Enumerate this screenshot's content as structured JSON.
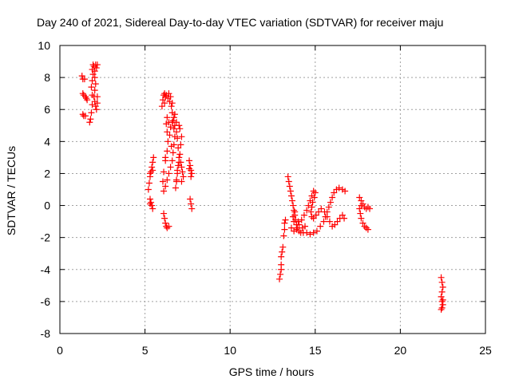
{
  "chart_data": {
    "type": "scatter",
    "title": "Day 240 of 2021, Sidereal Day-to-day VTEC variation (SDTVAR) for receiver maju",
    "xlabel": "GPS time / hours",
    "ylabel": "SDTVAR / TECUs",
    "xlim": [
      0,
      25
    ],
    "ylim": [
      -8,
      10
    ],
    "xticks": [
      0,
      5,
      10,
      15,
      20,
      25
    ],
    "yticks": [
      -8,
      -6,
      -4,
      -2,
      0,
      2,
      4,
      6,
      8,
      10
    ],
    "grid": true,
    "marker": "+",
    "color": "#ff0000",
    "series": [
      {
        "name": "SDTVAR",
        "points": [
          [
            1.3,
            8.1
          ],
          [
            1.35,
            7.9
          ],
          [
            1.45,
            7.9
          ],
          [
            1.35,
            7.0
          ],
          [
            1.4,
            6.9
          ],
          [
            1.5,
            6.8
          ],
          [
            1.55,
            6.7
          ],
          [
            1.6,
            6.6
          ],
          [
            1.35,
            5.7
          ],
          [
            1.4,
            5.6
          ],
          [
            1.5,
            5.6
          ],
          [
            1.75,
            5.2
          ],
          [
            1.8,
            5.4
          ],
          [
            1.85,
            5.8
          ],
          [
            1.9,
            6.3
          ],
          [
            1.9,
            6.9
          ],
          [
            1.85,
            7.4
          ],
          [
            1.9,
            7.8
          ],
          [
            1.95,
            8.2
          ],
          [
            1.9,
            8.5
          ],
          [
            1.95,
            8.8
          ],
          [
            2.0,
            8.7
          ],
          [
            2.05,
            8.4
          ],
          [
            2.05,
            8.0
          ],
          [
            2.1,
            7.6
          ],
          [
            2.05,
            7.2
          ],
          [
            2.0,
            6.8
          ],
          [
            2.05,
            6.5
          ],
          [
            2.1,
            6.2
          ],
          [
            2.15,
            6.0
          ],
          [
            2.2,
            6.4
          ],
          [
            2.2,
            6.8
          ],
          [
            2.1,
            8.8
          ],
          [
            2.15,
            8.6
          ],
          [
            2.2,
            8.8
          ],
          [
            5.2,
            1.0
          ],
          [
            5.25,
            1.4
          ],
          [
            5.3,
            1.8
          ],
          [
            5.35,
            2.1
          ],
          [
            5.4,
            2.4
          ],
          [
            5.45,
            2.7
          ],
          [
            5.5,
            3.0
          ],
          [
            5.45,
            2.2
          ],
          [
            5.3,
            2.0
          ],
          [
            5.3,
            0.4
          ],
          [
            5.35,
            0.2
          ],
          [
            5.4,
            0.0
          ],
          [
            5.45,
            -0.2
          ],
          [
            5.3,
            0.1
          ],
          [
            6.0,
            6.2
          ],
          [
            6.05,
            6.6
          ],
          [
            6.1,
            6.9
          ],
          [
            6.15,
            7.0
          ],
          [
            6.25,
            6.9
          ],
          [
            6.35,
            6.7
          ],
          [
            6.45,
            6.5
          ],
          [
            6.55,
            6.2
          ],
          [
            6.6,
            5.8
          ],
          [
            6.65,
            5.3
          ],
          [
            6.7,
            4.8
          ],
          [
            6.75,
            4.3
          ],
          [
            6.7,
            3.8
          ],
          [
            6.65,
            3.3
          ],
          [
            6.6,
            2.8
          ],
          [
            6.5,
            2.4
          ],
          [
            6.4,
            2.0
          ],
          [
            6.3,
            1.6
          ],
          [
            6.2,
            1.2
          ],
          [
            6.1,
            0.9
          ],
          [
            6.05,
            1.5
          ],
          [
            6.1,
            2.1
          ],
          [
            6.2,
            2.8
          ],
          [
            6.3,
            3.4
          ],
          [
            6.35,
            4.0
          ],
          [
            6.3,
            4.6
          ],
          [
            6.25,
            5.1
          ],
          [
            6.3,
            5.5
          ],
          [
            6.4,
            5.2
          ],
          [
            6.5,
            4.9
          ],
          [
            6.6,
            5.2
          ],
          [
            6.7,
            5.5
          ],
          [
            6.75,
            5.0
          ],
          [
            6.85,
            4.6
          ],
          [
            6.9,
            4.2
          ],
          [
            6.95,
            3.6
          ],
          [
            7.0,
            3.0
          ],
          [
            6.95,
            2.5
          ],
          [
            6.9,
            2.0
          ],
          [
            6.85,
            1.5
          ],
          [
            6.8,
            1.1
          ],
          [
            6.85,
            1.6
          ],
          [
            6.9,
            2.2
          ],
          [
            7.0,
            2.7
          ],
          [
            7.05,
            3.2
          ],
          [
            7.1,
            3.8
          ],
          [
            7.15,
            4.3
          ],
          [
            7.05,
            4.8
          ],
          [
            7.0,
            5.0
          ],
          [
            6.85,
            5.2
          ],
          [
            6.75,
            5.7
          ],
          [
            6.6,
            6.4
          ],
          [
            6.5,
            6.8
          ],
          [
            6.4,
            7.0
          ],
          [
            6.2,
            6.8
          ],
          [
            6.15,
            6.4
          ],
          [
            6.45,
            4.4
          ],
          [
            6.55,
            3.7
          ],
          [
            6.2,
            3.0
          ],
          [
            6.1,
            -0.5
          ],
          [
            6.15,
            -0.8
          ],
          [
            6.2,
            -1.1
          ],
          [
            6.25,
            -1.3
          ],
          [
            6.3,
            -1.4
          ],
          [
            6.4,
            -1.3
          ],
          [
            7.1,
            2.7
          ],
          [
            7.15,
            2.4
          ],
          [
            7.2,
            2.1
          ],
          [
            7.25,
            1.8
          ],
          [
            7.15,
            1.5
          ],
          [
            7.6,
            2.8
          ],
          [
            7.65,
            2.5
          ],
          [
            7.7,
            2.2
          ],
          [
            7.75,
            2.0
          ],
          [
            7.7,
            1.8
          ],
          [
            7.6,
            2.3
          ],
          [
            7.65,
            0.4
          ],
          [
            7.7,
            0.1
          ],
          [
            7.75,
            -0.2
          ],
          [
            12.9,
            -4.6
          ],
          [
            12.95,
            -4.3
          ],
          [
            13.0,
            -4.0
          ],
          [
            13.0,
            -3.7
          ],
          [
            13.0,
            -3.2
          ],
          [
            13.05,
            -2.9
          ],
          [
            13.1,
            -2.6
          ],
          [
            13.15,
            -1.9
          ],
          [
            13.2,
            -1.5
          ],
          [
            13.2,
            -1.1
          ],
          [
            13.25,
            -0.9
          ],
          [
            13.4,
            1.8
          ],
          [
            13.45,
            1.5
          ],
          [
            13.5,
            1.2
          ],
          [
            13.55,
            0.9
          ],
          [
            13.6,
            0.6
          ],
          [
            13.65,
            0.3
          ],
          [
            13.7,
            0.0
          ],
          [
            13.75,
            -0.3
          ],
          [
            13.8,
            -0.6
          ],
          [
            13.85,
            -0.9
          ],
          [
            13.9,
            -1.2
          ],
          [
            13.95,
            -1.4
          ],
          [
            14.05,
            -1.6
          ],
          [
            14.15,
            -1.7
          ],
          [
            14.3,
            -1.7
          ],
          [
            14.5,
            -1.7
          ],
          [
            14.7,
            -1.8
          ],
          [
            14.9,
            -1.7
          ],
          [
            15.1,
            -1.6
          ],
          [
            15.3,
            -1.3
          ],
          [
            15.5,
            -1.0
          ],
          [
            15.6,
            -0.7
          ],
          [
            15.7,
            -0.4
          ],
          [
            15.8,
            -0.1
          ],
          [
            15.9,
            0.2
          ],
          [
            16.0,
            0.5
          ],
          [
            16.1,
            0.8
          ],
          [
            16.25,
            1.0
          ],
          [
            16.4,
            1.1
          ],
          [
            16.6,
            1.0
          ],
          [
            16.75,
            0.9
          ],
          [
            13.6,
            -1.4
          ],
          [
            13.75,
            -1.6
          ],
          [
            13.9,
            -1.5
          ],
          [
            14.05,
            -1.2
          ],
          [
            14.2,
            -0.9
          ],
          [
            14.35,
            -0.6
          ],
          [
            14.5,
            -0.3
          ],
          [
            14.6,
            0.0
          ],
          [
            14.7,
            0.3
          ],
          [
            14.8,
            0.6
          ],
          [
            14.9,
            0.9
          ],
          [
            15.0,
            0.8
          ],
          [
            14.95,
            0.5
          ],
          [
            14.85,
            0.2
          ],
          [
            14.8,
            -0.1
          ],
          [
            14.75,
            -0.4
          ],
          [
            14.8,
            -0.7
          ],
          [
            14.9,
            -0.8
          ],
          [
            15.05,
            -0.6
          ],
          [
            15.2,
            -0.4
          ],
          [
            15.35,
            -0.2
          ],
          [
            15.55,
            -0.4
          ],
          [
            15.7,
            -0.7
          ],
          [
            15.85,
            -1.0
          ],
          [
            16.0,
            -1.3
          ],
          [
            16.15,
            -1.2
          ],
          [
            16.3,
            -1.0
          ],
          [
            16.45,
            -0.8
          ],
          [
            16.6,
            -0.6
          ],
          [
            16.7,
            -0.8
          ],
          [
            13.7,
            -0.7
          ],
          [
            13.8,
            -0.4
          ],
          [
            13.75,
            -1.0
          ],
          [
            14.0,
            -1.0
          ],
          [
            14.25,
            -1.4
          ],
          [
            14.4,
            -1.3
          ],
          [
            17.6,
            0.5
          ],
          [
            17.7,
            0.3
          ],
          [
            17.8,
            0.1
          ],
          [
            17.9,
            -0.1
          ],
          [
            18.0,
            -0.2
          ],
          [
            18.1,
            -0.1
          ],
          [
            18.2,
            -0.2
          ],
          [
            17.6,
            -0.2
          ],
          [
            17.65,
            -0.5
          ],
          [
            17.7,
            -0.8
          ],
          [
            17.8,
            -1.1
          ],
          [
            17.9,
            -1.3
          ],
          [
            18.0,
            -1.4
          ],
          [
            18.1,
            -1.5
          ],
          [
            17.7,
            0.0
          ],
          [
            22.4,
            -4.5
          ],
          [
            22.45,
            -4.8
          ],
          [
            22.5,
            -5.1
          ],
          [
            22.45,
            -5.4
          ],
          [
            22.4,
            -5.7
          ],
          [
            22.45,
            -6.0
          ],
          [
            22.5,
            -6.2
          ],
          [
            22.45,
            -6.4
          ],
          [
            22.4,
            -6.5
          ],
          [
            22.5,
            -5.9
          ]
        ]
      }
    ]
  }
}
